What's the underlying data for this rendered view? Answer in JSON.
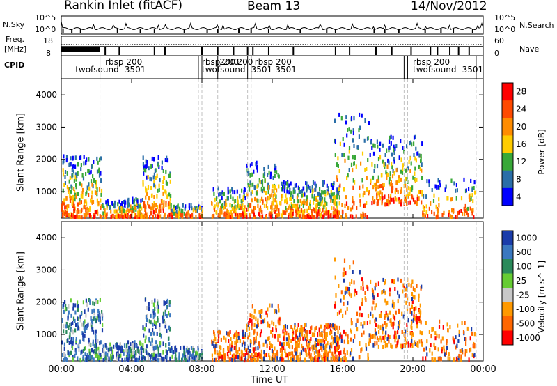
{
  "header": {
    "station": "Rankin Inlet (fitACF)",
    "beam": "Beam 13",
    "date": "14/Nov/2012"
  },
  "left_labels": {
    "nsky": "N.Sky",
    "nsky_top": "10^5",
    "nsky_bot": "10^0",
    "freq": "Freq.",
    "freq_unit": "[MHz]",
    "freq_top": "18",
    "freq_bot": "8",
    "cpid": "CPID"
  },
  "right_labels": {
    "nsearch": "N.Search",
    "nsearch_top": "10^5",
    "nsearch_bot": "10^0",
    "nave": "Nave",
    "nave_top": "60",
    "nave_bot": "0"
  },
  "cpid_labels": [
    {
      "text": "rbsp 200",
      "t": 2.5,
      "row": 0
    },
    {
      "text": "twofsound -3501",
      "t": 0.8,
      "row": 1
    },
    {
      "text": "rbsp 200",
      "t": 8.0,
      "row": 0
    },
    {
      "text": "200",
      "t": 9.0,
      "row": 0
    },
    {
      "text": "200",
      "t": 10.0,
      "row": 0
    },
    {
      "text": "rbsp 200",
      "t": 11.0,
      "row": 0
    },
    {
      "text": "twofsound -3501",
      "t": 8.0,
      "row": 1
    },
    {
      "text": "-3501",
      "t": 12.0,
      "row": 1
    },
    {
      "text": "rbsp 200",
      "t": 20.0,
      "row": 0
    },
    {
      "text": "twofsound -3501",
      "t": 20.0,
      "row": 1
    }
  ],
  "chart_data": [
    {
      "type": "heatmap",
      "name": "power",
      "ylabel": "Slant Range [km]",
      "colorbar_label": "Power [dB]",
      "colorbar_ticks": [
        "28",
        "24",
        "20",
        "16",
        "12",
        "8",
        "4"
      ],
      "colorbar_colors": [
        "#ff0000",
        "#ff4a00",
        "#ff8c00",
        "#ffcc00",
        "#38a838",
        "#2a6ea8",
        "#0000ff"
      ],
      "yticks": [
        "4000",
        "3000",
        "2000",
        "1000"
      ],
      "xlabel": "Time UT",
      "xticks": [
        "00:00",
        "04:00",
        "08:00",
        "12:00",
        "16:00",
        "20:00",
        "00:00"
      ]
    },
    {
      "type": "heatmap",
      "name": "velocity",
      "ylabel": "Slant Range [km]",
      "colorbar_label": "Velocity [m s^-1]",
      "colorbar_ticks": [
        "1000",
        "500",
        "100",
        "25",
        "-25",
        "-100",
        "-500",
        "-1000"
      ],
      "colorbar_colors": [
        "#1a3caa",
        "#3a78c0",
        "#2a8a5a",
        "#66cc33",
        "#c8c8c8",
        "#ff9900",
        "#ff6600",
        "#ff0000"
      ],
      "yticks": [
        "4000",
        "3000",
        "2000",
        "1000"
      ],
      "xlabel": "Time UT",
      "xticks": [
        "00:00",
        "04:00",
        "08:00",
        "12:00",
        "16:00",
        "20:00",
        "00:00"
      ]
    }
  ]
}
